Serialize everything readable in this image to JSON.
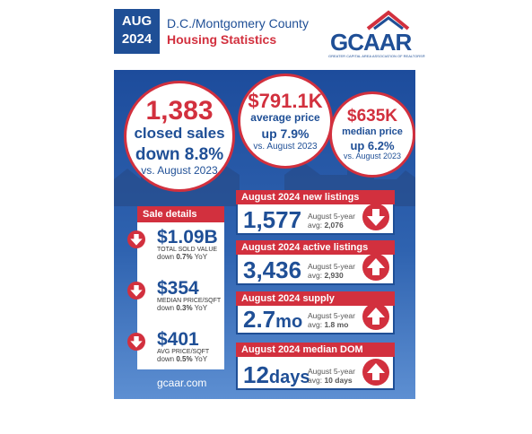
{
  "header": {
    "month": "AUG",
    "year": "2024",
    "title": "D.C./Montgomery County",
    "subtitle": "Housing Statistics",
    "logo": "GCAAR",
    "logo_tagline": "GREATER CAPITAL AREA ASSOCIATION OF REALTORS®"
  },
  "circles": [
    {
      "value": "1,383",
      "label": "closed sales",
      "change": "down 8.8%",
      "compare": "vs. August 2023"
    },
    {
      "value": "$791.1K",
      "label": "average price",
      "change": "up 7.9%",
      "compare": "vs. August 2023"
    },
    {
      "value": "$635K",
      "label": "median price",
      "change": "up 6.2%",
      "compare": "vs. August 2023"
    }
  ],
  "sale_details": {
    "title": "Sale details",
    "items": [
      {
        "value": "$1.09B",
        "label": "TOTAL SOLD VALUE",
        "direction": "down",
        "change": "0.7%",
        "suffix": "YoY",
        "trend": "down"
      },
      {
        "value": "$354",
        "label": "MEDIAN PRICE/SQFT",
        "direction": "down",
        "change": "0.3%",
        "suffix": "YoY",
        "trend": "down"
      },
      {
        "value": "$401",
        "label": "AVG PRICE/SQFT",
        "direction": "down",
        "change": "0.5%",
        "suffix": "YoY",
        "trend": "down"
      }
    ]
  },
  "cards": [
    {
      "title": "August 2024 new listings",
      "value": "1,577",
      "unit": "",
      "avg_label": "August 5-year",
      "avg_prefix": "avg:",
      "avg": "2,076",
      "trend": "down"
    },
    {
      "title": "August 2024 active listings",
      "value": "3,436",
      "unit": "",
      "avg_label": "August 5-year",
      "avg_prefix": "avg:",
      "avg": "2,930",
      "trend": "up"
    },
    {
      "title": "August 2024 supply",
      "value": "2.7",
      "unit": "mo",
      "avg_label": "August 5-year",
      "avg_prefix": "avg:",
      "avg": "1.8 mo",
      "trend": "up"
    },
    {
      "title": "August 2024 median DOM",
      "value": "12",
      "unit": "days",
      "avg_label": "August 5-year",
      "avg_prefix": "avg:",
      "avg": "10 days",
      "trend": "up"
    }
  ],
  "website": "gcaar.com"
}
